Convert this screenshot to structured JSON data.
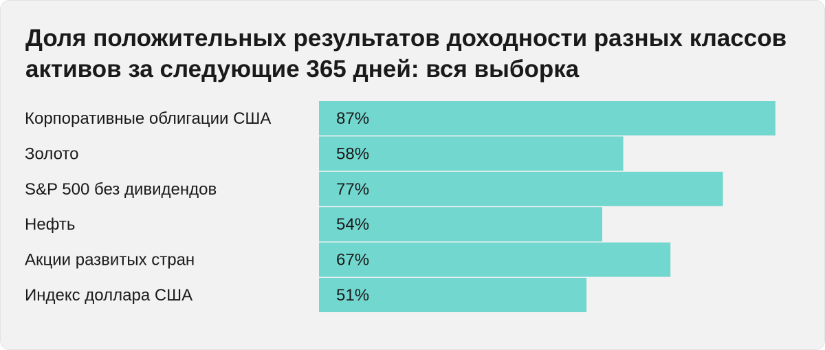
{
  "chart_data": {
    "type": "bar",
    "orientation": "horizontal",
    "title": "Доля положительных результатов доходности разных классов активов за следующие 365 дней: вся выборка",
    "categories": [
      "Корпоративные облигации США",
      "Золото",
      "S&P 500 без дивидендов",
      "Нефть",
      "Акции развитых стран",
      "Индекс доллара США"
    ],
    "values": [
      87,
      58,
      77,
      54,
      67,
      51
    ],
    "value_labels": [
      "87%",
      "58%",
      "77%",
      "54%",
      "67%",
      "51%"
    ],
    "unit": "%",
    "xlim": [
      0,
      100
    ],
    "grid": false,
    "colors": {
      "bar": "#72d7cf",
      "background": "#f2f2f2",
      "text": "#1a1a1a"
    }
  }
}
